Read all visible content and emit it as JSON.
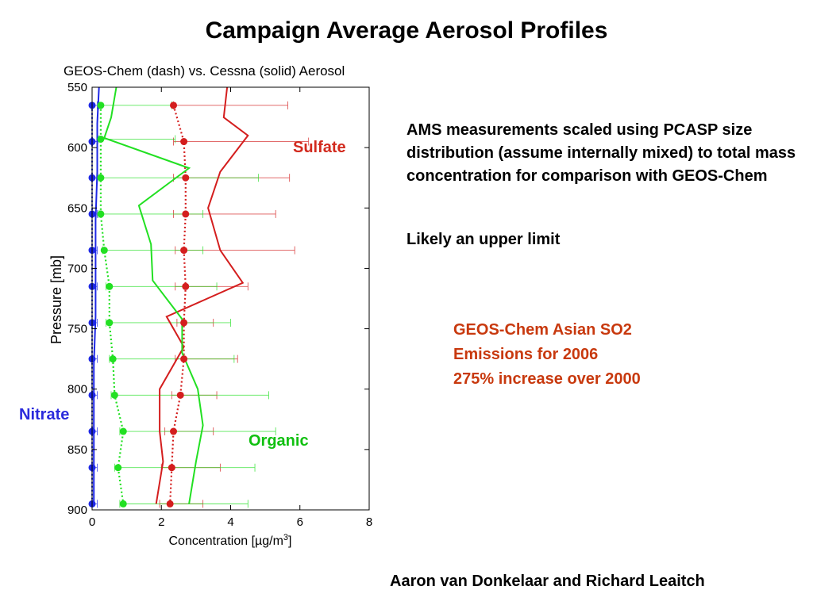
{
  "slide": {
    "title": "Campaign Average Aerosol Profiles",
    "notes": [
      "AMS measurements scaled using PCASP size distribution (assume internally mixed) to total mass concentration for comparison with GEOS-Chem",
      "Likely an upper limit"
    ],
    "emissions_note": [
      "GEOS-Chem Asian SO2",
      "Emissions for 2006",
      "275% increase over 2000"
    ],
    "author": "Aaron van Donkelaar and Richard Leaitch"
  },
  "chart_data": {
    "type": "line",
    "title": "GEOS-Chem (dash) vs. Cessna (solid) Aerosol",
    "xlabel": "Concentration [µg/m³]",
    "ylabel": "Pressure [mb]",
    "xlim": [
      0,
      8
    ],
    "ylim": [
      550,
      900
    ],
    "y_reversed": true,
    "xticks": [
      0,
      2,
      4,
      6,
      8
    ],
    "yticks": [
      550,
      600,
      650,
      700,
      750,
      800,
      850,
      900
    ],
    "grid": false,
    "colors": {
      "sulfate": "#d41e1e",
      "organic": "#22e022",
      "nitrate": "#1e28e6"
    },
    "annotations": {
      "sulfate": "Sulfate",
      "nitrate": "Nitrate",
      "organic": "Organic"
    },
    "series": [
      {
        "key": "sulfate",
        "style": "solid",
        "points": [
          [
            3.9,
            550
          ],
          [
            3.8,
            575
          ],
          [
            4.5,
            590
          ],
          [
            3.7,
            620
          ],
          [
            3.35,
            650
          ],
          [
            3.7,
            685
          ],
          [
            4.35,
            712
          ],
          [
            2.15,
            740
          ],
          [
            2.65,
            765
          ],
          [
            1.95,
            800
          ],
          [
            1.95,
            835
          ],
          [
            2.05,
            860
          ],
          [
            1.85,
            895
          ]
        ]
      },
      {
        "key": "sulfate",
        "style": "dotted",
        "points": [
          [
            2.35,
            565
          ],
          [
            2.65,
            595
          ],
          [
            2.7,
            625
          ],
          [
            2.7,
            655
          ],
          [
            2.65,
            685
          ],
          [
            2.7,
            715
          ],
          [
            2.65,
            745
          ],
          [
            2.65,
            775
          ],
          [
            2.55,
            805
          ],
          [
            2.35,
            835
          ],
          [
            2.3,
            865
          ],
          [
            2.25,
            895
          ]
        ],
        "err_low": [
          2.35,
          2.35,
          2.35,
          2.35,
          2.4,
          2.4,
          2.45,
          2.4,
          2.3,
          2.1,
          2.0,
          1.95
        ],
        "err_high": [
          5.65,
          6.25,
          5.7,
          5.3,
          5.85,
          4.5,
          3.5,
          4.2,
          3.6,
          3.5,
          3.7,
          3.2
        ]
      },
      {
        "key": "organic",
        "style": "solid",
        "points": [
          [
            0.7,
            550
          ],
          [
            0.55,
            575
          ],
          [
            0.35,
            592
          ],
          [
            2.8,
            617
          ],
          [
            1.35,
            648
          ],
          [
            1.7,
            680
          ],
          [
            1.75,
            710
          ],
          [
            2.6,
            742
          ],
          [
            2.6,
            770
          ],
          [
            3.05,
            800
          ],
          [
            3.2,
            830
          ],
          [
            3.0,
            860
          ],
          [
            2.8,
            895
          ]
        ]
      },
      {
        "key": "organic",
        "style": "dotted",
        "points": [
          [
            0.25,
            565
          ],
          [
            0.25,
            593
          ],
          [
            0.25,
            625
          ],
          [
            0.25,
            655
          ],
          [
            0.35,
            685
          ],
          [
            0.5,
            715
          ],
          [
            0.5,
            745
          ],
          [
            0.6,
            775
          ],
          [
            0.65,
            805
          ],
          [
            0.9,
            835
          ],
          [
            0.75,
            865
          ],
          [
            0.9,
            895
          ]
        ],
        "err_low": [
          0.2,
          0.2,
          0.2,
          0.2,
          0.3,
          0.4,
          0.4,
          0.5,
          0.55,
          0.8,
          0.65,
          0.8
        ],
        "err_high": [
          2.3,
          2.4,
          4.8,
          3.2,
          3.2,
          3.6,
          4.0,
          4.1,
          5.1,
          5.3,
          4.7,
          4.5
        ]
      },
      {
        "key": "nitrate",
        "style": "solid",
        "points": [
          [
            0.2,
            550
          ],
          [
            0.15,
            580
          ],
          [
            0.15,
            620
          ],
          [
            0.1,
            660
          ],
          [
            0.1,
            700
          ],
          [
            0.1,
            740
          ],
          [
            0.05,
            780
          ],
          [
            0.05,
            820
          ],
          [
            0.05,
            860
          ],
          [
            0.05,
            895
          ]
        ]
      },
      {
        "key": "nitrate",
        "style": "dotted",
        "points": [
          [
            0.0,
            565
          ],
          [
            0.0,
            595
          ],
          [
            0.0,
            625
          ],
          [
            0.0,
            655
          ],
          [
            0.0,
            685
          ],
          [
            0.0,
            715
          ],
          [
            0.0,
            745
          ],
          [
            0.0,
            775
          ],
          [
            0.0,
            805
          ],
          [
            0.0,
            835
          ],
          [
            0.0,
            865
          ],
          [
            0.0,
            895
          ]
        ],
        "err_low": [
          0,
          0,
          0,
          0,
          0,
          0,
          0,
          0,
          0,
          0,
          0,
          0
        ],
        "err_high": [
          0.15,
          0.15,
          0.15,
          0.15,
          0.15,
          0.15,
          0.15,
          0.15,
          0.15,
          0.15,
          0.15,
          0.15
        ]
      }
    ]
  }
}
